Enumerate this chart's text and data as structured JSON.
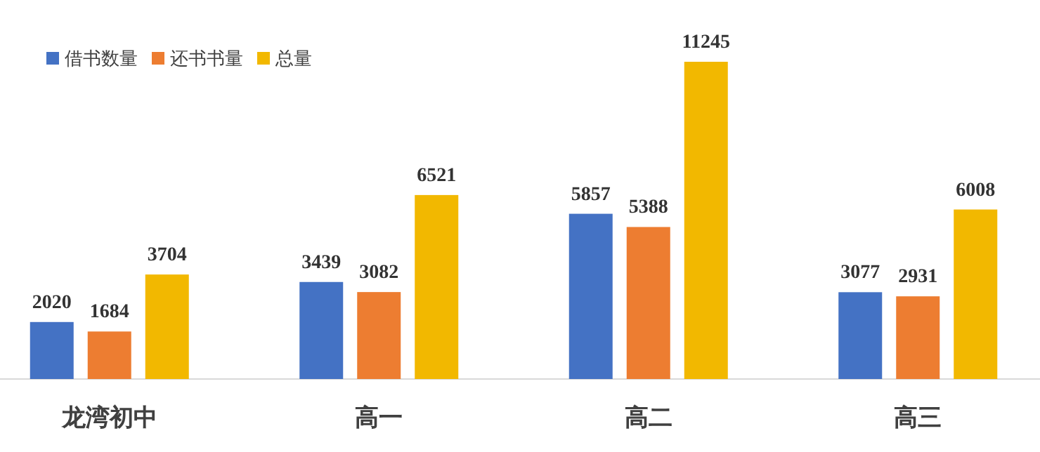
{
  "chart_data": {
    "type": "bar",
    "categories": [
      "龙湾初中",
      "高一",
      "高二",
      "高三"
    ],
    "series": [
      {
        "name": "借书数量",
        "color": "#4472c4",
        "values": [
          2020,
          3439,
          5857,
          3077
        ]
      },
      {
        "name": "还书书量",
        "color": "#ed7d31",
        "values": [
          1684,
          3082,
          5388,
          2931
        ]
      },
      {
        "name": "总量",
        "color": "#f2b800",
        "values": [
          3704,
          6521,
          11245,
          6008
        ]
      }
    ],
    "data_labels": true,
    "legend": "top left"
  }
}
